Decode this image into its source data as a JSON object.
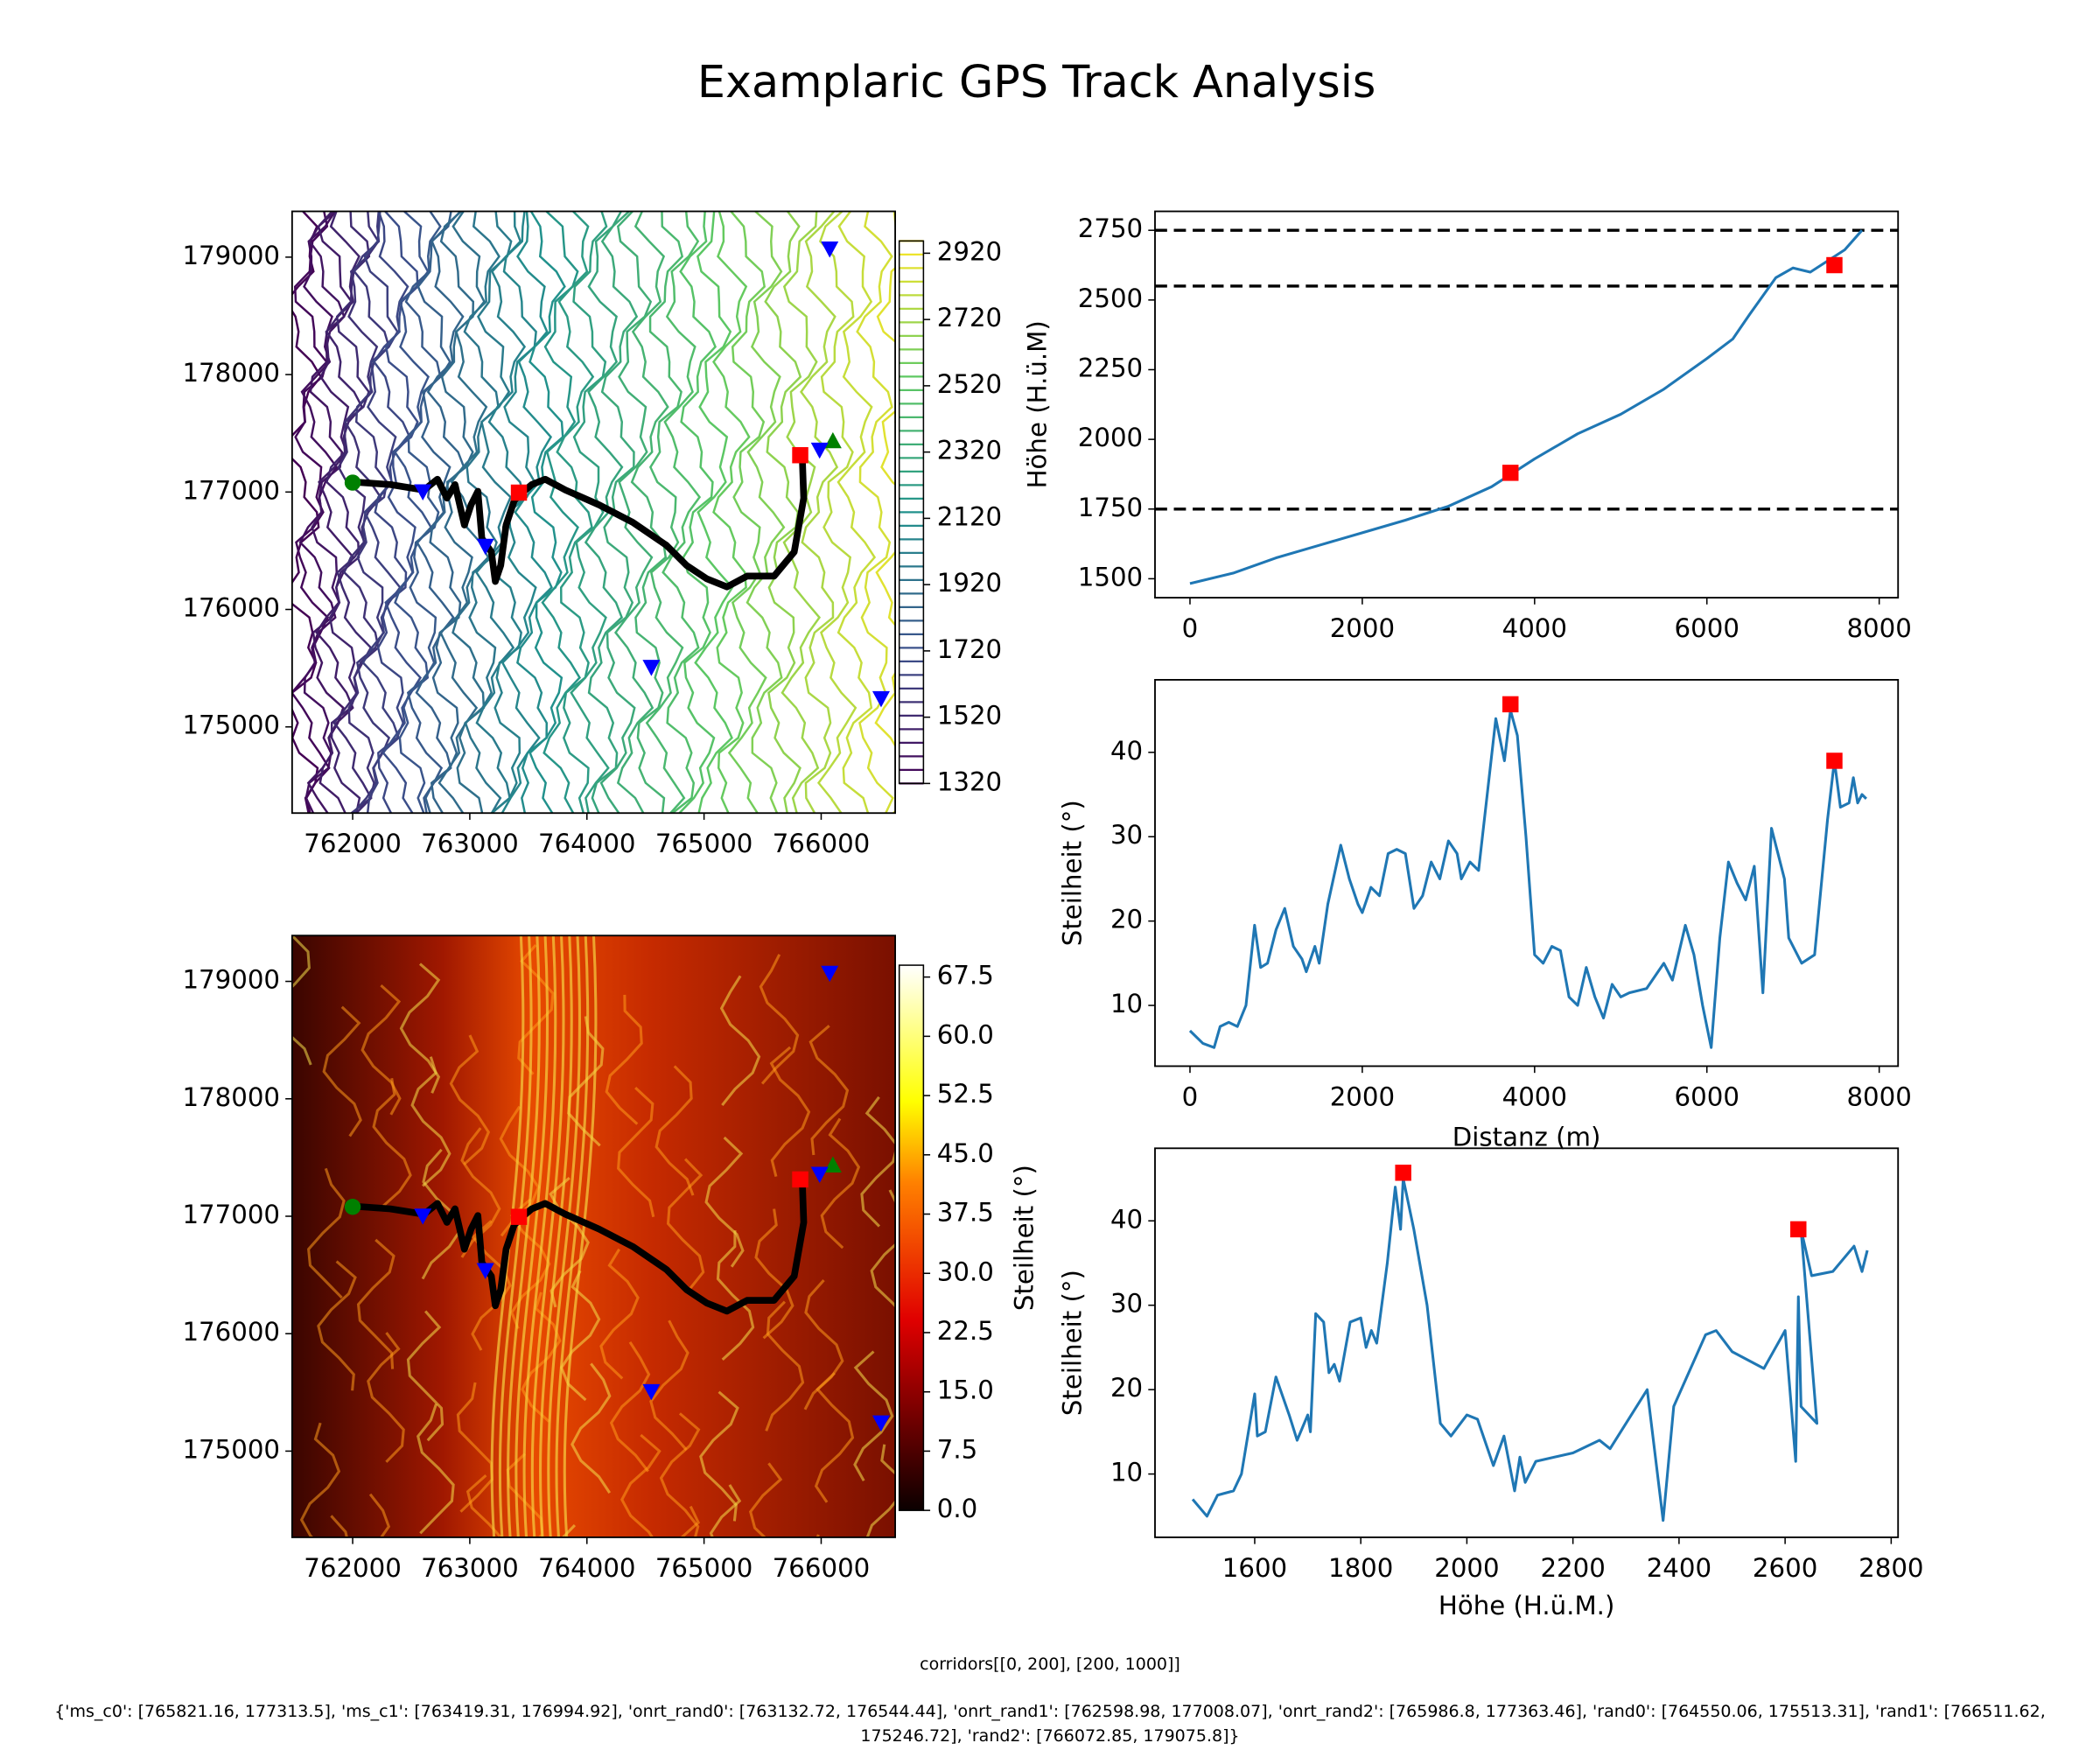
{
  "title": "Examplaric GPS Track Analysis",
  "chart_data": [
    {
      "type": "contour-map",
      "colormap": "viridis",
      "xlim": [
        761483,
        766632
      ],
      "ylim": [
        174266,
        179390
      ],
      "xticks": [
        762000,
        763000,
        764000,
        765000,
        766000
      ],
      "yticks": [
        175000,
        176000,
        177000,
        178000,
        179000
      ],
      "colorbar": {
        "lim": [
          1320,
          2957
        ],
        "ticks": [
          1320,
          1520,
          1720,
          1920,
          2120,
          2320,
          2520,
          2720,
          2920
        ]
      },
      "series": [
        {
          "marker": "line",
          "color": "#000000",
          "x": [
            762000,
            762322,
            762609,
            762724,
            762805,
            762874,
            762954,
            763011,
            763069,
            763103,
            763184,
            763218,
            763264,
            763310,
            763379,
            763448,
            763529,
            763644,
            763816,
            764103,
            764391,
            764678,
            764851,
            765023,
            765195,
            765368,
            765598,
            765770,
            765851,
            765839
          ],
          "y": [
            177086,
            177063,
            177017,
            177109,
            176948,
            177063,
            176719,
            176891,
            177006,
            176605,
            176490,
            176238,
            176375,
            176719,
            176926,
            176994,
            177063,
            177109,
            177017,
            176891,
            176742,
            176547,
            176375,
            176261,
            176192,
            176284,
            176284,
            176490,
            176948,
            177292
          ]
        },
        {
          "marker": "circle",
          "color": "#008000",
          "x": [
            762000
          ],
          "y": [
            177080
          ]
        },
        {
          "marker": "triangle-up",
          "color": "#008000",
          "x": [
            766100
          ],
          "y": [
            177430
          ]
        },
        {
          "marker": "square",
          "color": "#ff0000",
          "x": [
            765821.16,
            763419.31
          ],
          "y": [
            177313.5,
            176994.92
          ]
        },
        {
          "marker": "triangle-down",
          "color": "#0000ff",
          "x": [
            763132.72,
            762598.98,
            765986.8,
            764550.06,
            766511.62,
            766072.85
          ],
          "y": [
            176544.44,
            177008.07,
            177363.46,
            175513.31,
            175246.72,
            179075.8
          ]
        }
      ]
    },
    {
      "type": "heatmap-map",
      "colormap": "hot",
      "xlim": [
        761483,
        766632
      ],
      "ylim": [
        174266,
        179390
      ],
      "xticks": [
        762000,
        763000,
        764000,
        765000,
        766000
      ],
      "yticks": [
        175000,
        176000,
        177000,
        178000,
        179000
      ],
      "colorbar": {
        "lim": [
          0,
          69
        ],
        "label": "Steilheit (°)",
        "ticks": [
          {
            "value": 0,
            "label": "0.0"
          },
          7.5,
          {
            "value": 15,
            "label": "15.0"
          },
          22.5,
          {
            "value": 30,
            "label": "30.0"
          },
          37.5,
          {
            "value": 45,
            "label": "45.0"
          },
          52.5,
          {
            "value": 60,
            "label": "60.0"
          },
          67.5
        ]
      },
      "series": [
        {
          "marker": "line",
          "color": "#000000",
          "x": [
            762000,
            762322,
            762609,
            762724,
            762805,
            762874,
            762954,
            763011,
            763069,
            763103,
            763184,
            763218,
            763264,
            763310,
            763379,
            763448,
            763529,
            763644,
            763816,
            764103,
            764391,
            764678,
            764851,
            765023,
            765195,
            765368,
            765598,
            765770,
            765851,
            765839
          ],
          "y": [
            177086,
            177063,
            177017,
            177109,
            176948,
            177063,
            176719,
            176891,
            177006,
            176605,
            176490,
            176238,
            176375,
            176719,
            176926,
            176994,
            177063,
            177109,
            177017,
            176891,
            176742,
            176547,
            176375,
            176261,
            176192,
            176284,
            176284,
            176490,
            176948,
            177292
          ]
        },
        {
          "marker": "circle",
          "color": "#008000",
          "x": [
            762000
          ],
          "y": [
            177080
          ]
        },
        {
          "marker": "triangle-up",
          "color": "#008000",
          "x": [
            766100
          ],
          "y": [
            177430
          ]
        },
        {
          "marker": "square",
          "color": "#ff0000",
          "x": [
            765821.16,
            763419.31
          ],
          "y": [
            177313.5,
            176994.92
          ]
        },
        {
          "marker": "triangle-down",
          "color": "#0000ff",
          "x": [
            763132.72,
            762598.98,
            765986.8,
            764550.06,
            766511.62,
            766072.85
          ],
          "y": [
            176544.44,
            177008.07,
            177363.46,
            175513.31,
            175246.72,
            179075.8
          ]
        }
      ]
    },
    {
      "type": "line",
      "ylabel": "Höhe (H.ü.M)",
      "xlim": [
        -406,
        8219
      ],
      "ylim": [
        1432,
        2818
      ],
      "xticks": [
        0,
        2000,
        4000,
        6000,
        8000
      ],
      "yticks": [
        1500,
        1750,
        2000,
        2250,
        2500,
        2750
      ],
      "hlines": [
        1750,
        2550,
        2750
      ],
      "series": [
        {
          "marker": "line",
          "color": "#1f77b4",
          "x": [
            0,
            500,
            1000,
            1500,
            2000,
            2500,
            3000,
            3500,
            4000,
            4500,
            5000,
            5500,
            6000,
            6300,
            6500,
            6800,
            7000,
            7200,
            7400,
            7600,
            7800
          ],
          "y": [
            1483,
            1520,
            1575,
            1620,
            1665,
            1710,
            1760,
            1830,
            1930,
            2020,
            2090,
            2180,
            2290,
            2360,
            2450,
            2580,
            2615,
            2600,
            2640,
            2680,
            2750
          ]
        },
        {
          "marker": "square",
          "color": "#ff0000",
          "x": [
            3720,
            7480
          ],
          "y": [
            1880,
            2625
          ]
        }
      ]
    },
    {
      "type": "line",
      "ylabel": "Steilheit (°)",
      "xlabel": "Distanz (m)",
      "xlim": [
        -406,
        8219
      ],
      "ylim": [
        2.8,
        48.6
      ],
      "xticks": [
        0,
        2000,
        4000,
        6000,
        8000
      ],
      "yticks": [
        10,
        20,
        30,
        40
      ],
      "series": [
        {
          "marker": "line",
          "color": "#1f77b4",
          "x": [
            0,
            150,
            280,
            350,
            450,
            550,
            650,
            750,
            820,
            900,
            1000,
            1100,
            1200,
            1300,
            1350,
            1450,
            1500,
            1600,
            1750,
            1850,
            1950,
            2000,
            2100,
            2200,
            2300,
            2400,
            2500,
            2600,
            2700,
            2800,
            2900,
            3000,
            3100,
            3150,
            3250,
            3350,
            3450,
            3550,
            3650,
            3720,
            3800,
            3900,
            4000,
            4100,
            4200,
            4300,
            4400,
            4500,
            4600,
            4700,
            4800,
            4900,
            5000,
            5100,
            5300,
            5500,
            5600,
            5750,
            5850,
            5950,
            6050,
            6150,
            6250,
            6350,
            6450,
            6550,
            6650,
            6750,
            6900,
            6950,
            7100,
            7250,
            7400,
            7480,
            7550,
            7650,
            7700,
            7750,
            7800,
            7850
          ],
          "y": [
            7,
            5.5,
            5,
            7.5,
            8,
            7.5,
            10,
            19.5,
            14.5,
            15,
            19,
            21.5,
            17,
            15.5,
            14,
            17,
            15,
            22,
            29,
            25,
            22,
            21,
            24,
            23,
            28,
            28.5,
            28,
            21.5,
            23,
            27,
            25,
            29.5,
            28,
            25,
            27,
            26,
            35,
            44,
            39,
            45,
            42,
            30,
            16,
            15,
            17,
            16.5,
            11,
            10,
            14.5,
            11,
            8.5,
            12.5,
            11,
            11.5,
            12,
            15,
            13,
            19.5,
            16,
            10,
            5,
            18,
            27,
            24.5,
            22.5,
            26.5,
            11.5,
            31,
            25,
            18,
            15,
            16,
            32,
            39,
            33.5,
            34,
            37,
            34,
            35,
            34.5
          ]
        },
        {
          "marker": "square",
          "color": "#ff0000",
          "x": [
            3720,
            7480
          ],
          "y": [
            45.7,
            39
          ]
        }
      ]
    },
    {
      "type": "line",
      "ylabel": "Steilheit (°)",
      "xlabel": "Höhe (H.ü.M.)",
      "xlim": [
        1412,
        2813
      ],
      "ylim": [
        2.5,
        48.6
      ],
      "xticks": [
        1600,
        1800,
        2000,
        2200,
        2400,
        2600,
        2800
      ],
      "yticks": [
        10,
        20,
        30,
        40
      ],
      "series": [
        {
          "marker": "line",
          "color": "#1f77b4",
          "x": [
            1483,
            1510,
            1530,
            1560,
            1575,
            1600,
            1605,
            1620,
            1640,
            1665,
            1680,
            1700,
            1705,
            1715,
            1730,
            1740,
            1750,
            1760,
            1780,
            1800,
            1810,
            1820,
            1830,
            1850,
            1865,
            1875,
            1880,
            1890,
            1900,
            1925,
            1950,
            1970,
            2000,
            2020,
            2050,
            2070,
            2090,
            2100,
            2110,
            2130,
            2200,
            2250,
            2270,
            2340,
            2370,
            2390,
            2450,
            2470,
            2500,
            2560,
            2600,
            2620,
            2625,
            2630,
            2660,
            2630,
            2650,
            2690,
            2730,
            2745,
            2755
          ],
          "y": [
            7,
            5,
            7.5,
            8,
            10,
            19.5,
            14.5,
            15,
            21.5,
            17,
            14,
            17,
            15,
            29,
            28,
            22,
            23,
            21,
            28,
            28.5,
            25,
            27,
            25.5,
            35,
            44,
            39,
            45,
            42,
            39,
            30,
            16,
            14.5,
            17,
            16.5,
            11,
            14.5,
            8,
            12,
            9,
            11.5,
            12.5,
            14,
            13,
            20,
            4.5,
            18,
            26.5,
            27,
            24.5,
            22.5,
            27,
            11.5,
            31,
            18,
            16,
            39,
            33.5,
            34,
            37,
            34,
            36.5
          ]
        },
        {
          "marker": "square",
          "color": "#ff0000",
          "x": [
            1880,
            2625
          ],
          "y": [
            45.7,
            39
          ]
        }
      ]
    }
  ],
  "footer": {
    "corridors": "corridors[[0, 200], [200, 1000]]",
    "points": "{'ms_c0': [765821.16, 177313.5], 'ms_c1': [763419.31, 176994.92], 'onrt_rand0': [763132.72, 176544.44], 'onrt_rand1': [762598.98, 177008.07], 'onrt_rand2': [765986.8, 177363.46], 'rand0': [764550.06, 175513.31], 'rand1': [766511.62, 175246.72], 'rand2': [766072.85, 179075.8]}"
  }
}
